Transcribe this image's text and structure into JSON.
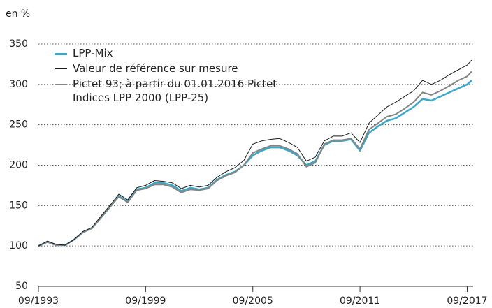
{
  "chart_data": {
    "type": "line",
    "y_unit_label": "en %",
    "x": [
      "1993-09",
      "1994-03",
      "1994-09",
      "1995-03",
      "1995-09",
      "1996-03",
      "1996-09",
      "1997-03",
      "1997-09",
      "1998-03",
      "1998-09",
      "1999-03",
      "1999-09",
      "2000-03",
      "2000-09",
      "2001-03",
      "2001-09",
      "2002-03",
      "2002-09",
      "2003-03",
      "2003-09",
      "2004-03",
      "2004-09",
      "2005-03",
      "2005-09",
      "2006-03",
      "2006-09",
      "2007-03",
      "2007-09",
      "2008-03",
      "2008-09",
      "2009-03",
      "2009-09",
      "2010-03",
      "2010-09",
      "2011-03",
      "2011-09",
      "2012-03",
      "2012-09",
      "2013-03",
      "2013-09",
      "2014-03",
      "2014-09",
      "2015-03",
      "2015-09",
      "2016-03",
      "2016-09",
      "2017-03",
      "2017-09",
      "2017-12"
    ],
    "series": [
      {
        "name": "LPP-Mix",
        "color": "#3aa8c8",
        "width": 2.5,
        "values": [
          100,
          105,
          101,
          101,
          108,
          117,
          122,
          135,
          148,
          162,
          155,
          170,
          172,
          178,
          178,
          175,
          168,
          172,
          170,
          172,
          182,
          188,
          192,
          200,
          212,
          218,
          222,
          222,
          218,
          212,
          200,
          205,
          225,
          230,
          230,
          232,
          218,
          240,
          248,
          255,
          258,
          265,
          272,
          282,
          280,
          285,
          290,
          295,
          300,
          305
        ]
      },
      {
        "name": "Pictet 93; à partir du 01.01.2016 Pictet Indices LPP 2000 (LPP-25)",
        "color": "#858585",
        "width": 2,
        "values": [
          100,
          105,
          101,
          101,
          108,
          117,
          122,
          135,
          148,
          161,
          154,
          169,
          171,
          176,
          176,
          173,
          166,
          170,
          169,
          171,
          181,
          187,
          191,
          200,
          215,
          220,
          224,
          224,
          220,
          214,
          198,
          203,
          226,
          231,
          231,
          233,
          220,
          244,
          252,
          260,
          263,
          270,
          278,
          290,
          287,
          292,
          298,
          305,
          310,
          316
        ]
      },
      {
        "name": "Valeur de référence sur mesure",
        "color": "#1a1a1a",
        "width": 1,
        "values": [
          100,
          106,
          102,
          101,
          108,
          118,
          123,
          137,
          150,
          164,
          157,
          172,
          175,
          181,
          180,
          178,
          171,
          175,
          173,
          175,
          185,
          192,
          197,
          206,
          226,
          230,
          232,
          233,
          228,
          222,
          205,
          210,
          230,
          236,
          236,
          240,
          228,
          252,
          262,
          272,
          278,
          285,
          292,
          305,
          300,
          305,
          312,
          318,
          324,
          330
        ]
      }
    ],
    "legend_order": [
      0,
      2,
      1
    ],
    "xlim": [
      "1993-09",
      "2018-01"
    ],
    "xticks": [
      {
        "value": "1993-09",
        "label": "09/1993"
      },
      {
        "value": "1999-09",
        "label": "09/1999"
      },
      {
        "value": "2005-09",
        "label": "09/2005"
      },
      {
        "value": "2011-09",
        "label": "09/2011"
      },
      {
        "value": "2017-09",
        "label": "09/2017"
      }
    ],
    "ylim": [
      50,
      350
    ],
    "yticks": [
      50,
      100,
      150,
      200,
      250,
      300,
      350
    ],
    "grid": true,
    "legend": "upper left"
  }
}
